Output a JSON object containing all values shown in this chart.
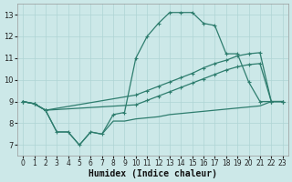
{
  "xlabel": "Humidex (Indice chaleur)",
  "xlim": [
    -0.5,
    23.5
  ],
  "ylim": [
    6.5,
    13.5
  ],
  "xticks": [
    0,
    1,
    2,
    3,
    4,
    5,
    6,
    7,
    8,
    9,
    10,
    11,
    12,
    13,
    14,
    15,
    16,
    17,
    18,
    19,
    20,
    21,
    22,
    23
  ],
  "yticks": [
    7,
    8,
    9,
    10,
    11,
    12,
    13
  ],
  "bg_color": "#cce8e8",
  "line_color": "#2e7d6e",
  "grid_color": "#afd4d4",
  "line1_x": [
    0,
    1,
    2,
    3,
    4,
    5,
    6,
    7,
    8,
    9,
    10,
    11,
    12,
    13,
    14,
    15,
    16,
    17,
    18,
    19,
    20,
    21,
    22,
    23
  ],
  "line1_y": [
    9.0,
    8.9,
    8.6,
    7.6,
    7.6,
    7.0,
    7.6,
    7.5,
    8.4,
    8.5,
    11.0,
    12.0,
    12.6,
    13.1,
    13.1,
    13.1,
    12.6,
    12.5,
    11.2,
    11.2,
    9.9,
    9.0,
    9.0,
    9.0
  ],
  "line2_x": [
    0,
    1,
    2,
    10,
    11,
    12,
    13,
    14,
    15,
    16,
    17,
    18,
    19,
    20,
    21,
    22,
    23
  ],
  "line2_y": [
    9.0,
    8.9,
    8.6,
    9.3,
    9.5,
    9.7,
    9.9,
    10.1,
    10.3,
    10.55,
    10.75,
    10.9,
    11.1,
    11.2,
    11.25,
    9.0,
    9.0
  ],
  "line3_x": [
    0,
    1,
    2,
    10,
    11,
    12,
    13,
    14,
    15,
    16,
    17,
    18,
    19,
    20,
    21,
    22,
    23
  ],
  "line3_y": [
    9.0,
    8.9,
    8.6,
    8.85,
    9.05,
    9.25,
    9.45,
    9.65,
    9.85,
    10.05,
    10.25,
    10.45,
    10.6,
    10.7,
    10.75,
    9.0,
    9.0
  ],
  "line4_x": [
    0,
    1,
    2,
    3,
    4,
    5,
    6,
    7,
    8,
    9,
    10,
    11,
    12,
    13,
    14,
    15,
    16,
    17,
    18,
    19,
    20,
    21,
    22,
    23
  ],
  "line4_y": [
    9.0,
    8.9,
    8.6,
    7.6,
    7.6,
    7.0,
    7.6,
    7.5,
    8.1,
    8.1,
    8.2,
    8.25,
    8.3,
    8.4,
    8.45,
    8.5,
    8.55,
    8.6,
    8.65,
    8.7,
    8.75,
    8.8,
    9.0,
    9.0
  ]
}
